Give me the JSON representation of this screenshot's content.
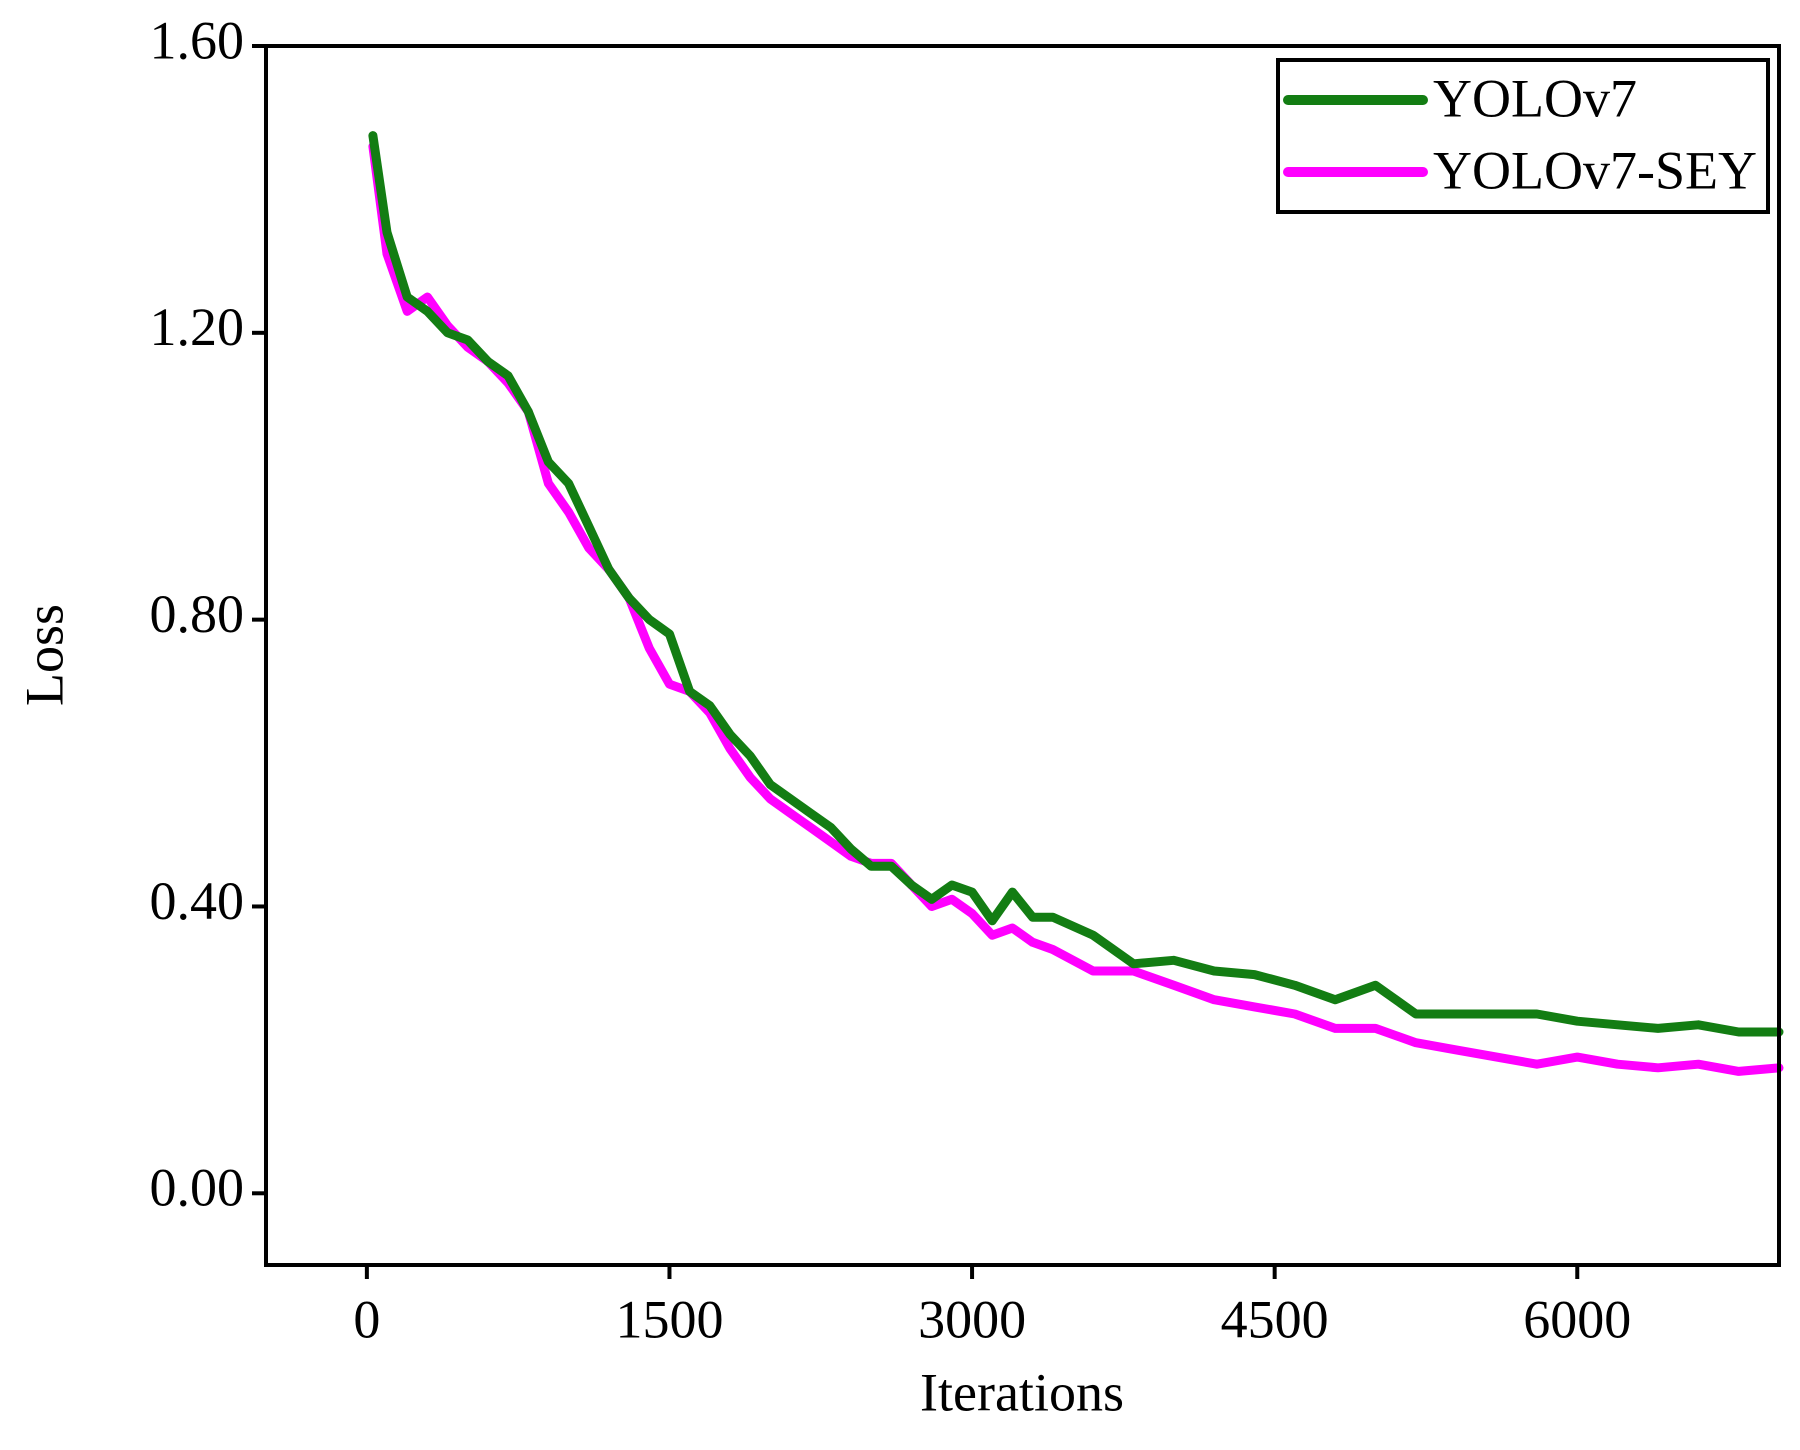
{
  "chart_data": {
    "type": "line",
    "x_label": "Iterations",
    "y_label": "Loss",
    "x": [
      30,
      100,
      200,
      300,
      400,
      500,
      600,
      700,
      800,
      900,
      1000,
      1100,
      1200,
      1300,
      1400,
      1500,
      1600,
      1700,
      1800,
      1900,
      2000,
      2100,
      2200,
      2300,
      2400,
      2500,
      2600,
      2700,
      2800,
      2900,
      3000,
      3100,
      3200,
      3300,
      3400,
      3600,
      3800,
      4000,
      4200,
      4400,
      4600,
      4800,
      5000,
      5200,
      5400,
      5600,
      5800,
      6000,
      6200,
      6400,
      6600,
      6800,
      7000
    ],
    "series": [
      {
        "name": "YOLOv7",
        "color": "#137d13",
        "values": [
          1.475,
          1.34,
          1.25,
          1.23,
          1.2,
          1.19,
          1.16,
          1.14,
          1.09,
          1.02,
          0.99,
          0.93,
          0.87,
          0.83,
          0.8,
          0.78,
          0.7,
          0.68,
          0.64,
          0.61,
          0.57,
          0.55,
          0.53,
          0.51,
          0.48,
          0.456,
          0.456,
          0.43,
          0.41,
          0.43,
          0.42,
          0.38,
          0.42,
          0.385,
          0.385,
          0.36,
          0.32,
          0.325,
          0.31,
          0.305,
          0.29,
          0.27,
          0.29,
          0.25,
          0.25,
          0.25,
          0.25,
          0.24,
          0.235,
          0.23,
          0.235,
          0.225,
          0.225
        ]
      },
      {
        "name": "YOLOv7-SEY",
        "color": "#ff00ff",
        "values": [
          1.46,
          1.31,
          1.23,
          1.25,
          1.21,
          1.18,
          1.16,
          1.13,
          1.09,
          0.99,
          0.95,
          0.9,
          0.87,
          0.83,
          0.76,
          0.71,
          0.7,
          0.67,
          0.62,
          0.58,
          0.55,
          0.53,
          0.51,
          0.49,
          0.47,
          0.46,
          0.46,
          0.43,
          0.4,
          0.41,
          0.39,
          0.36,
          0.37,
          0.35,
          0.34,
          0.31,
          0.31,
          0.29,
          0.27,
          0.26,
          0.25,
          0.23,
          0.23,
          0.21,
          0.2,
          0.19,
          0.18,
          0.19,
          0.18,
          0.175,
          0.18,
          0.17,
          0.175
        ]
      }
    ],
    "xlim": [
      -500,
      7000
    ],
    "xticks": [
      0,
      1500,
      3000,
      4500,
      6000
    ],
    "ylim": [
      -0.1,
      1.6
    ],
    "yticks": [
      {
        "value": 0,
        "label": "0.00"
      },
      {
        "value": 0.4,
        "label": "0.40"
      },
      {
        "value": 0.8,
        "label": "0.80"
      },
      {
        "value": 1.2,
        "label": "1.20"
      },
      {
        "value": 1.6,
        "label": "1.60"
      }
    ],
    "legend": "upper right",
    "grid": false
  }
}
